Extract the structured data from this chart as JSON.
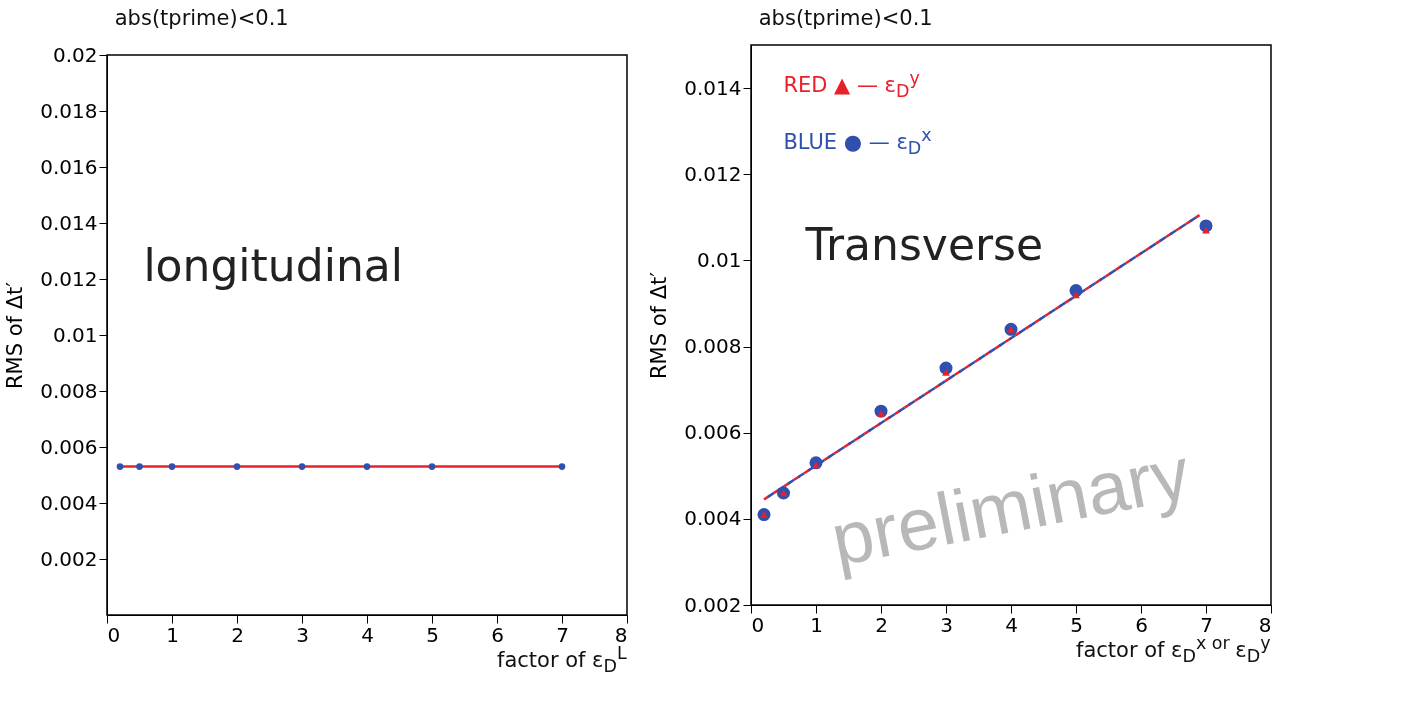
{
  "chart_data": [
    {
      "type": "scatter",
      "title": "abs(tprime)<0.1",
      "xlabel": "factor of ε$_{D}$$^{L}$",
      "ylabel": "RMS of Δt′",
      "xlim": [
        0,
        8
      ],
      "xticks": [
        0,
        1,
        2,
        3,
        4,
        5,
        6,
        7,
        8
      ],
      "ylim": [
        0,
        0.02
      ],
      "yticks": [
        0.002,
        0.004,
        0.006,
        0.008,
        0.01,
        0.012,
        0.014,
        0.016,
        0.018,
        0.02
      ],
      "grid": false,
      "legend": false,
      "annotations": [
        "longitudinal"
      ],
      "series": [
        {
          "marker": "circle",
          "color": "#3050b0",
          "x": [
            0.2,
            0.5,
            1,
            2,
            3,
            4,
            5,
            7
          ],
          "values": [
            0.0053,
            0.0053,
            0.0053,
            0.0053,
            0.0053,
            0.0053,
            0.0053,
            0.0053
          ]
        },
        {
          "type": "line",
          "color": "#e8202a",
          "x": [
            0.2,
            7
          ],
          "values": [
            0.0053,
            0.0053
          ]
        }
      ]
    },
    {
      "type": "scatter",
      "title": "abs(tprime)<0.1",
      "xlabel": "factor of ε$_{D}$$^{x or }$ε$_{D}$$^{y}$",
      "ylabel": "RMS of Δt′",
      "xlim": [
        0,
        8
      ],
      "xticks": [
        0,
        1,
        2,
        3,
        4,
        5,
        6,
        7,
        8
      ],
      "ylim": [
        0.002,
        0.015
      ],
      "yticks": [
        0.002,
        0.004,
        0.006,
        0.008,
        0.01,
        0.012,
        0.014
      ],
      "grid": false,
      "legend": "top left",
      "annotations": [
        "Transverse",
        "preliminary"
      ],
      "series": [
        {
          "name": "BLUE ● — ε$_{D}$$^{x}$",
          "marker": "circle",
          "color": "#3050b0",
          "x": [
            0.2,
            0.5,
            1,
            2,
            3,
            4,
            5,
            7
          ],
          "values": [
            0.0041,
            0.0046,
            0.0053,
            0.0065,
            0.0075,
            0.0084,
            0.0093,
            0.0108
          ]
        },
        {
          "name": "RED ▲ — ε$_{D}$$^{y}$",
          "marker": "triangle",
          "color": "#e8202a",
          "x": [
            0.2,
            0.5,
            1,
            2,
            3,
            4,
            5,
            7
          ],
          "values": [
            0.0041,
            0.0046,
            0.00525,
            0.00645,
            0.0074,
            0.0084,
            0.0092,
            0.0107
          ]
        },
        {
          "type": "line",
          "line_style": "dashed",
          "color": "#e8202a",
          "x": [
            0.2,
            6.9
          ],
          "values": [
            0.00445,
            0.01105
          ]
        },
        {
          "type": "line",
          "line_style": "dashed",
          "color": "#3050b0",
          "x": [
            0.2,
            6.9
          ],
          "values": [
            0.00445,
            0.01105
          ]
        }
      ]
    }
  ]
}
